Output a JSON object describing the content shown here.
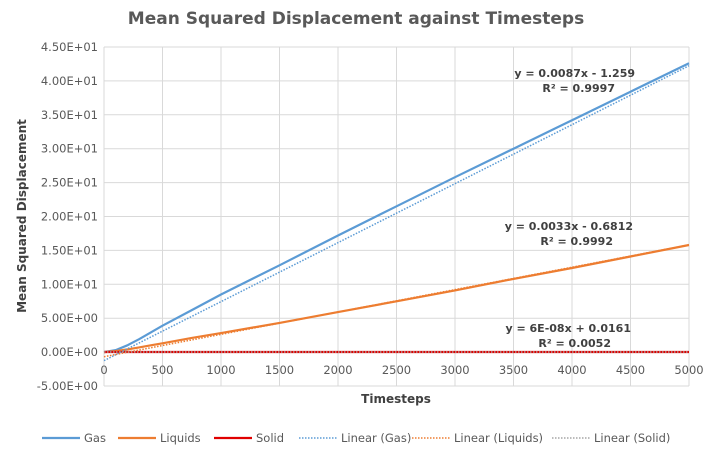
{
  "chart_data": {
    "type": "line",
    "title": "Mean Squared Displacement against Timesteps",
    "xlabel": "Timesteps",
    "ylabel": "Mean Squared Displacement",
    "xlim": [
      0,
      5000
    ],
    "ylim": [
      -5,
      45
    ],
    "x_ticks": [
      "0",
      "500",
      "1000",
      "1500",
      "2000",
      "2500",
      "3000",
      "3500",
      "4000",
      "4500",
      "5000"
    ],
    "x_tick_values": [
      0,
      500,
      1000,
      1500,
      2000,
      2500,
      3000,
      3500,
      4000,
      4500,
      5000
    ],
    "y_ticks": [
      "4.50E+01",
      "4.00E+01",
      "3.50E+01",
      "3.00E+01",
      "2.50E+01",
      "2.00E+01",
      "1.50E+01",
      "1.00E+01",
      "5.00E+00",
      "0.00E+00",
      "-5.00E+00"
    ],
    "y_tick_values": [
      45,
      40,
      35,
      30,
      25,
      20,
      15,
      10,
      5,
      0,
      -5
    ],
    "grid": true,
    "legend_position": "bottom",
    "series": [
      {
        "name": "Gas",
        "color": "#5b9bd5",
        "style": "solid",
        "x": [
          0,
          100,
          200,
          300,
          400,
          500,
          750,
          1000,
          1500,
          2000,
          2500,
          3000,
          3500,
          4000,
          4500,
          5000
        ],
        "y": [
          0,
          0.3,
          1.0,
          1.9,
          2.9,
          3.9,
          6.2,
          8.5,
          12.8,
          17.2,
          21.5,
          25.8,
          30.0,
          34.2,
          38.4,
          42.6
        ]
      },
      {
        "name": "Liquids",
        "color": "#ed7d31",
        "style": "solid",
        "x": [
          0,
          100,
          200,
          300,
          400,
          500,
          750,
          1000,
          1500,
          2000,
          2500,
          3000,
          3500,
          4000,
          4500,
          5000
        ],
        "y": [
          0,
          0.15,
          0.4,
          0.7,
          1.0,
          1.3,
          2.1,
          2.8,
          4.3,
          5.9,
          7.5,
          9.1,
          10.8,
          12.4,
          14.1,
          15.8
        ]
      },
      {
        "name": "Solid",
        "color": "#e00000",
        "style": "solid",
        "x": [
          0,
          5000
        ],
        "y": [
          0.016,
          0.017
        ]
      }
    ],
    "trendlines": [
      {
        "name": "Linear (Gas)",
        "color": "#5b9bd5",
        "style": "dotted",
        "slope": 0.0087,
        "intercept": -1.259,
        "equation": "y = 0.0087x - 1.259",
        "r_squared": "R² = 0.9997"
      },
      {
        "name": "Linear (Liquids)",
        "color": "#ed7d31",
        "style": "dotted",
        "slope": 0.0033,
        "intercept": -0.6812,
        "equation": "y = 0.0033x - 0.6812",
        "r_squared": "R² = 0.9992"
      },
      {
        "name": "Linear (Solid)",
        "color": "#a5a5a5",
        "style": "dotted",
        "slope": 6e-08,
        "intercept": 0.0161,
        "equation": "y = 6E-08x + 0.0161",
        "r_squared": "R² = 0.0052"
      }
    ],
    "legend": [
      "Gas",
      "Liquids",
      "Solid",
      "Linear (Gas)",
      "Linear (Liquids)",
      "Linear (Solid)"
    ]
  }
}
